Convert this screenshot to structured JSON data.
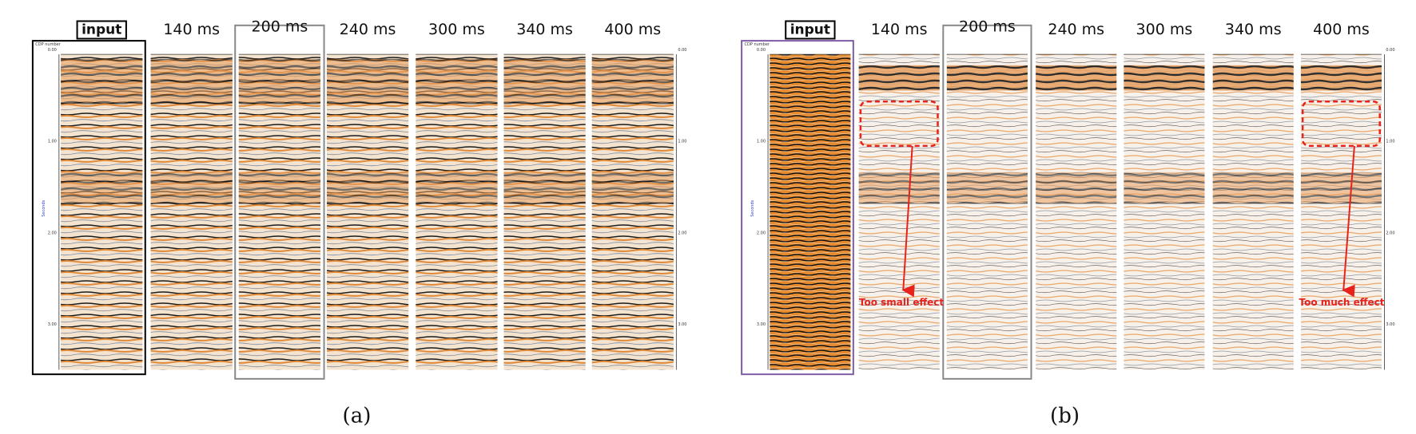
{
  "panels": [
    {
      "caption": "(a)",
      "top_label": "CDP number",
      "axis_title": "Seconds",
      "time_ticks": [
        "0.00",
        "1.00",
        "2.00",
        "3.00"
      ],
      "labels": [
        "input",
        "140 ms",
        "200 ms",
        "240 ms",
        "300 ms",
        "340 ms",
        "400 ms"
      ]
    },
    {
      "caption": "(b)",
      "top_label": "CDP number",
      "axis_title": "Seconds",
      "time_ticks": [
        "0.00",
        "1.00",
        "2.00",
        "3.00"
      ],
      "labels": [
        "input",
        "140 ms",
        "200 ms",
        "240 ms",
        "300 ms",
        "340 ms",
        "400 ms"
      ],
      "annotations": [
        "Too small effect",
        "Too much effect"
      ]
    }
  ]
}
